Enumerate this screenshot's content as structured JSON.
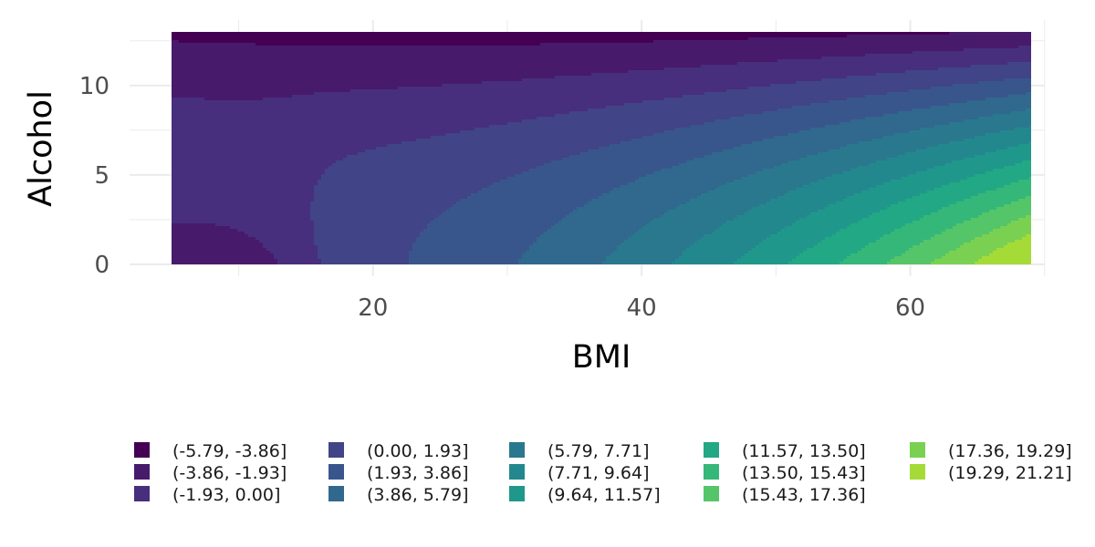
{
  "chart_data": {
    "type": "contour",
    "xlabel": "BMI",
    "ylabel": "Alcohol",
    "title": "",
    "xlim": [
      5,
      69
    ],
    "ylim": [
      0,
      13
    ],
    "xticks": [
      20,
      40,
      60
    ],
    "yticks": [
      0,
      5,
      10
    ],
    "x_tick_labels": [
      "20",
      "40",
      "60"
    ],
    "y_tick_labels": [
      "0",
      "5",
      "10"
    ],
    "grid": true,
    "legend_position": "bottom",
    "colorscale": "viridis",
    "levels": [
      {
        "label": "(-5.79, -3.86]",
        "color": "#440154"
      },
      {
        "label": "(-3.86, -1.93]",
        "color": "#481A6C"
      },
      {
        "label": "(-1.93, 0.00]",
        "color": "#472F7D"
      },
      {
        "label": "(0.00, 1.93]",
        "color": "#414487"
      },
      {
        "label": "(1.93, 3.86]",
        "color": "#39568C"
      },
      {
        "label": "(3.86, 5.79]",
        "color": "#31688E"
      },
      {
        "label": "(5.79, 7.71]",
        "color": "#2A788E"
      },
      {
        "label": "(7.71, 9.64]",
        "color": "#23888E"
      },
      {
        "label": "(9.64, 11.57]",
        "color": "#1F988B"
      },
      {
        "label": "(11.57, 13.50]",
        "color": "#22A884"
      },
      {
        "label": "(13.50, 15.43]",
        "color": "#35B779"
      },
      {
        "label": "(15.43, 17.36]",
        "color": "#54C568"
      },
      {
        "label": "(17.36, 19.29]",
        "color": "#7AD151"
      },
      {
        "label": "(19.29, 21.21]",
        "color": "#A5DB36"
      }
    ]
  }
}
